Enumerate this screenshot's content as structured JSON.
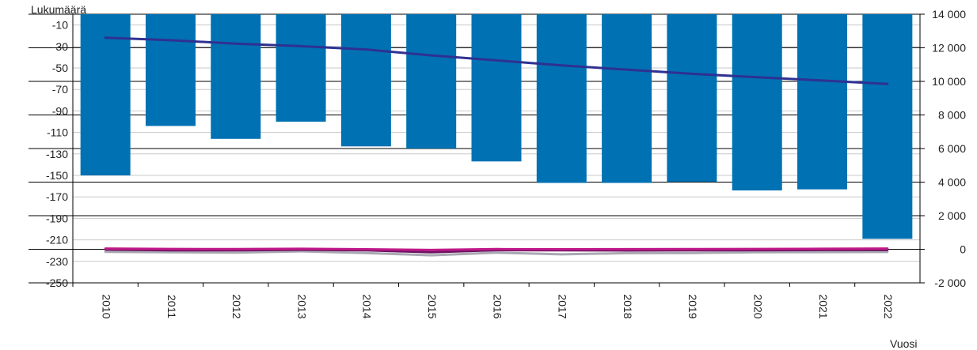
{
  "chart_data": {
    "type": "bar",
    "y_axis_title": "Lukumäärä",
    "x_axis_title": "Vuosi",
    "categories": [
      "2010",
      "2011",
      "2012",
      "2013",
      "2014",
      "2015",
      "2016",
      "2017",
      "2018",
      "2019",
      "2020",
      "2021",
      "2022"
    ],
    "left_axis": {
      "ticks": [
        "-10",
        "-30",
        "-50",
        "-70",
        "-90",
        "-110",
        "-130",
        "-150",
        "-170",
        "-190",
        "-210",
        "-230",
        "-250"
      ],
      "range": [
        -250,
        0
      ]
    },
    "right_axis": {
      "ticks": [
        "14 000",
        "12 000",
        "10 000",
        "8 000",
        "6 000",
        "4 000",
        "2 000",
        "0",
        "-2 000"
      ],
      "range": [
        -2000,
        14000
      ]
    },
    "grid": true,
    "bar_series": {
      "color": "#0071b2",
      "axis": "left",
      "values": [
        -150,
        -104,
        -116,
        -100,
        -123,
        -125,
        -137,
        -157,
        -157,
        -156,
        -164,
        -163,
        -209
      ]
    },
    "line_series": [
      {
        "color": "#2e3192",
        "axis": "right",
        "values": [
          12600,
          12450,
          12250,
          12100,
          11900,
          11550,
          11250,
          10950,
          10700,
          10450,
          10250,
          10050,
          9850
        ]
      },
      {
        "color": "#a9a9b3",
        "axis": "right",
        "values": [
          -150,
          -180,
          -200,
          -120,
          -220,
          -360,
          -200,
          -300,
          -230,
          -220,
          -180,
          -170,
          -160
        ]
      },
      {
        "color": "#6d1360",
        "axis": "right",
        "values": [
          -20,
          -60,
          -60,
          -30,
          -60,
          -180,
          -50,
          -60,
          -70,
          -60,
          -50,
          -40,
          -40
        ]
      },
      {
        "color": "#c01a8a",
        "axis": "right",
        "values": [
          40,
          20,
          10,
          30,
          0,
          -40,
          10,
          0,
          5,
          10,
          20,
          30,
          40
        ]
      }
    ]
  }
}
